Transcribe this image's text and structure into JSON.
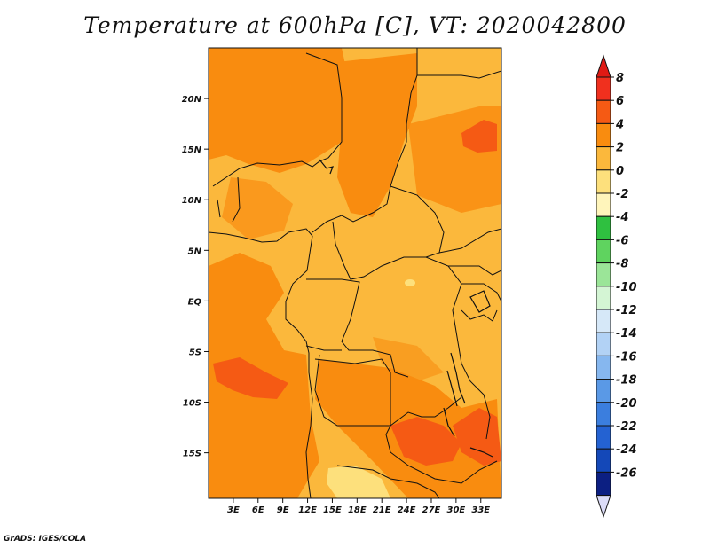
{
  "title": "Temperature at 600hPa [C], VT: 2020042800",
  "footer": "GrADS: IGES/COLA",
  "map": {
    "lon_range": [
      0,
      35.5
    ],
    "lat_range": [
      -19.5,
      25
    ],
    "lon_ticks": [
      {
        "v": 3,
        "label": "3E"
      },
      {
        "v": 6,
        "label": "6E"
      },
      {
        "v": 9,
        "label": "9E"
      },
      {
        "v": 12,
        "label": "12E"
      },
      {
        "v": 15,
        "label": "15E"
      },
      {
        "v": 18,
        "label": "18E"
      },
      {
        "v": 21,
        "label": "21E"
      },
      {
        "v": 24,
        "label": "24E"
      },
      {
        "v": 27,
        "label": "27E"
      },
      {
        "v": 30,
        "label": "30E"
      },
      {
        "v": 33,
        "label": "33E"
      }
    ],
    "lat_ticks": [
      {
        "v": 20,
        "label": "20N"
      },
      {
        "v": 15,
        "label": "15N"
      },
      {
        "v": 10,
        "label": "10N"
      },
      {
        "v": 5,
        "label": "5N"
      },
      {
        "v": 0,
        "label": "EQ"
      },
      {
        "v": -5,
        "label": "5S"
      },
      {
        "v": -10,
        "label": "10S"
      },
      {
        "v": -15,
        "label": "15S"
      }
    ]
  },
  "colorbar": {
    "labels": [
      "8",
      "6",
      "4",
      "2",
      "0",
      "-2",
      "-4",
      "-6",
      "-8",
      "-10",
      "-12",
      "-14",
      "-16",
      "-18",
      "-20",
      "-22",
      "-24",
      "-26"
    ],
    "colors": [
      "#f0301e",
      "#f55a14",
      "#f98c0f",
      "#fbb83c",
      "#fde07c",
      "#fff5bb",
      "#2fc040",
      "#5fd35f",
      "#9be598",
      "#d4f5d4",
      "#d6e8f8",
      "#b2d2f5",
      "#86b7ef",
      "#5a99e6",
      "#3b7ede",
      "#2462d2",
      "#1448b8",
      "#0c1f82"
    ],
    "top_cap_color": "#e01a14",
    "bottom_cap_color": "#dcdcf7"
  }
}
